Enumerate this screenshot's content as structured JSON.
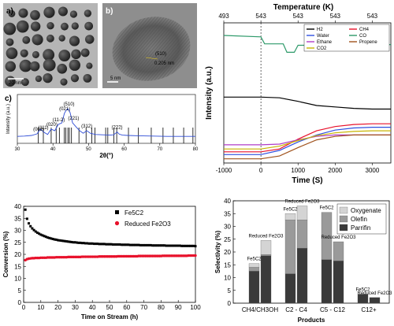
{
  "panels": {
    "a": {
      "letter": "a)",
      "scale_bar": "20 nm"
    },
    "b": {
      "letter": "b)",
      "scale_bar": "5 nm",
      "annotations": [
        "(510)",
        "0.205 nm"
      ]
    },
    "c": {
      "letter": "c)"
    }
  },
  "chart_data": [
    {
      "id": "xrd",
      "type": "line",
      "title": "",
      "xlabel": "2θ(°)",
      "ylabel": "Intensity (a.u.)",
      "xlim": [
        30,
        80
      ],
      "xticks": [
        30,
        40,
        50,
        60,
        70,
        80
      ],
      "x": [
        30,
        32,
        34,
        35.5,
        36.5,
        37.5,
        38.5,
        39.5,
        40.5,
        41.5,
        42.5,
        43.2,
        43.7,
        44.2,
        44.8,
        45.5,
        46.5,
        47.5,
        48.5,
        49.5,
        50.5,
        52,
        54,
        56,
        57,
        57.6,
        58,
        58.6,
        59.5,
        61,
        64,
        68,
        72,
        76,
        80
      ],
      "y": [
        0.12,
        0.13,
        0.15,
        0.2,
        0.35,
        0.25,
        0.18,
        0.35,
        0.3,
        0.5,
        0.55,
        0.85,
        0.95,
        1.0,
        0.88,
        0.55,
        0.42,
        0.3,
        0.22,
        0.3,
        0.22,
        0.18,
        0.17,
        0.16,
        0.17,
        0.22,
        0.26,
        0.19,
        0.16,
        0.15,
        0.14,
        0.13,
        0.12,
        0.12,
        0.12
      ],
      "peak_labels": [
        {
          "label": "(002)",
          "x": 36.0
        },
        {
          "label": "(111)",
          "x": 37.3
        },
        {
          "label": "(020)",
          "x": 39.7
        },
        {
          "label": "(11-2)",
          "x": 41.6
        },
        {
          "label": "(021)",
          "x": 43.3
        },
        {
          "label": "(510)",
          "x": 44.5
        },
        {
          "label": "(221)",
          "x": 45.8
        },
        {
          "label": "(312)",
          "x": 49.5
        },
        {
          "label": "(222)",
          "x": 58.0
        }
      ],
      "reference_lines": [
        35.9,
        37.3,
        39.5,
        40.9,
        41.8,
        43.2,
        43.6,
        44.2,
        44.6,
        45.2,
        47.3,
        49.3,
        50.9,
        51.8,
        54.8,
        55.4,
        57.1,
        57.9,
        61.2,
        64.0,
        67.6,
        70.9,
        73.8,
        76.7,
        79.3
      ]
    },
    {
      "id": "tpd",
      "type": "line",
      "xlabel": "Time (S)",
      "ylabel": "Intensity (a.u.)",
      "top_axis_label": "Temperature (K)",
      "top_ticks": [
        {
          "label": "493",
          "x": -1000
        },
        {
          "label": "543",
          "x": 0
        },
        {
          "label": "543",
          "x": 1000
        },
        {
          "label": "543",
          "x": 2000
        },
        {
          "label": "543",
          "x": 3000
        }
      ],
      "xlim": [
        -1000,
        3500
      ],
      "xticks": [
        -1000,
        0,
        1000,
        2000,
        3000
      ],
      "ylim": [
        0,
        1
      ],
      "dashed_line_x": 0,
      "legend_position": "top-right",
      "series": [
        {
          "name": "H2",
          "color": "#000000",
          "x": [
            -1000,
            0,
            500,
            1000,
            1500,
            2000,
            2500,
            3000,
            3500
          ],
          "y": [
            0.47,
            0.47,
            0.465,
            0.44,
            0.41,
            0.4,
            0.39,
            0.385,
            0.385
          ]
        },
        {
          "name": "CH4",
          "color": "#e8112b",
          "x": [
            -1000,
            0,
            500,
            1000,
            1500,
            2000,
            2500,
            3000,
            3500
          ],
          "y": [
            0.08,
            0.08,
            0.1,
            0.17,
            0.23,
            0.26,
            0.275,
            0.28,
            0.28
          ]
        },
        {
          "name": "Water",
          "color": "#3050e0",
          "x": [
            -1000,
            0,
            500,
            1000,
            1500,
            2000,
            2500,
            3000,
            3500
          ],
          "y": [
            0.06,
            0.06,
            0.09,
            0.15,
            0.2,
            0.235,
            0.25,
            0.255,
            0.255
          ]
        },
        {
          "name": "CO",
          "color": "#2e9a6a",
          "x": [
            -1000,
            0,
            100,
            600,
            700,
            900,
            1000,
            3500
          ],
          "y": [
            0.91,
            0.9,
            0.85,
            0.85,
            0.79,
            0.79,
            0.84,
            0.845
          ]
        },
        {
          "name": "Ethane",
          "color": "#b03cc8",
          "x": [
            -1000,
            0,
            500,
            1000,
            1500,
            2000,
            2500,
            3000,
            3500
          ],
          "y": [
            0.13,
            0.13,
            0.135,
            0.165,
            0.19,
            0.2,
            0.2,
            0.2,
            0.2
          ]
        },
        {
          "name": "Propene",
          "color": "#a0521d",
          "x": [
            -1000,
            0,
            500,
            1000,
            1500,
            2000,
            2500,
            3000,
            3500
          ],
          "y": [
            0.03,
            0.03,
            0.05,
            0.11,
            0.165,
            0.19,
            0.2,
            0.2,
            0.2
          ]
        },
        {
          "name": "CO2",
          "color": "#c8b400",
          "x": [
            -1000,
            0,
            500,
            1000,
            1500,
            2000,
            2500,
            3000,
            3500
          ],
          "y": [
            0.1,
            0.1,
            0.12,
            0.16,
            0.195,
            0.215,
            0.225,
            0.23,
            0.23
          ]
        }
      ]
    },
    {
      "id": "conversion",
      "type": "scatter",
      "xlabel": "Time on Stream (h)",
      "ylabel": "Conversion (%)",
      "xlim": [
        0,
        100
      ],
      "ylim": [
        0,
        40
      ],
      "xticks": [
        0,
        10,
        20,
        30,
        40,
        50,
        60,
        70,
        80,
        90,
        100
      ],
      "yticks": [
        0,
        5,
        10,
        15,
        20,
        25,
        30,
        35,
        40
      ],
      "legend_position": "top-right",
      "series": [
        {
          "name": "Fe5C2",
          "color": "#000000",
          "marker": "square",
          "x": [
            1,
            2,
            3,
            4,
            5,
            6,
            7,
            8,
            9,
            10,
            11,
            12,
            13,
            14,
            15,
            16,
            17,
            18,
            19,
            20,
            21,
            22,
            23,
            24,
            25,
            26,
            27,
            28,
            29,
            30,
            31,
            32,
            33,
            34,
            35,
            36,
            37,
            38,
            39,
            40,
            41,
            42,
            43,
            44,
            45,
            46,
            47,
            48,
            49,
            50,
            51,
            52,
            53,
            54,
            55,
            56,
            57,
            58,
            59,
            60,
            61,
            62,
            63,
            64,
            65,
            66,
            67,
            68,
            69,
            70,
            71,
            72,
            73,
            74,
            75,
            76,
            77,
            78,
            79,
            80,
            81,
            82,
            83,
            84,
            85,
            86,
            87,
            88,
            89,
            90,
            91,
            92,
            93,
            94,
            95,
            96,
            97,
            98,
            99,
            100
          ],
          "y": [
            38.6,
            34.8,
            32.9,
            31.7,
            30.8,
            30.1,
            29.5,
            29.0,
            28.6,
            28.2,
            27.9,
            27.6,
            27.3,
            27.0,
            26.8,
            26.6,
            26.4,
            26.2,
            26.1,
            25.9,
            25.8,
            25.7,
            25.6,
            25.5,
            25.4,
            25.3,
            25.2,
            25.1,
            25.0,
            25.0,
            24.9,
            24.8,
            24.8,
            24.7,
            24.7,
            24.6,
            24.6,
            24.5,
            24.5,
            24.5,
            24.4,
            24.4,
            24.4,
            24.3,
            24.3,
            24.3,
            24.3,
            24.2,
            24.2,
            24.2,
            24.2,
            24.1,
            24.1,
            24.1,
            24.1,
            24.1,
            24.0,
            24.0,
            24.0,
            24.0,
            24.0,
            23.9,
            23.9,
            23.9,
            23.9,
            23.9,
            23.9,
            23.8,
            23.8,
            23.8,
            23.8,
            23.8,
            23.8,
            23.8,
            23.7,
            23.7,
            23.7,
            23.7,
            23.7,
            23.7,
            23.7,
            23.7,
            23.6,
            23.6,
            23.6,
            23.6,
            23.6,
            23.6,
            23.6,
            23.6,
            23.6,
            23.5,
            23.5,
            23.5,
            23.5,
            23.5,
            23.5,
            23.5,
            23.5,
            23.4
          ]
        },
        {
          "name": "Reduced Fe2O3",
          "color": "#e8112b",
          "marker": "circle",
          "x": [
            1,
            2,
            3,
            4,
            5,
            6,
            7,
            8,
            9,
            10,
            11,
            12,
            13,
            14,
            15,
            16,
            17,
            18,
            19,
            20,
            21,
            22,
            23,
            24,
            25,
            26,
            27,
            28,
            29,
            30,
            31,
            32,
            33,
            34,
            35,
            36,
            37,
            38,
            39,
            40,
            41,
            42,
            43,
            44,
            45,
            46,
            47,
            48,
            49,
            50,
            51,
            52,
            53,
            54,
            55,
            56,
            57,
            58,
            59,
            60,
            61,
            62,
            63,
            64,
            65,
            66,
            67,
            68,
            69,
            70,
            71,
            72,
            73,
            74,
            75,
            76,
            77,
            78,
            79,
            80,
            81,
            82,
            83,
            84,
            85,
            86,
            87,
            88,
            89,
            90,
            91,
            92,
            93,
            94,
            95,
            96,
            97,
            98,
            99,
            100
          ],
          "y": [
            17.6,
            18.0,
            18.2,
            18.3,
            18.4,
            18.4,
            18.5,
            18.5,
            18.5,
            18.6,
            18.6,
            18.6,
            18.6,
            18.7,
            18.7,
            18.7,
            18.7,
            18.7,
            18.8,
            18.8,
            18.8,
            18.8,
            18.8,
            18.8,
            18.8,
            18.9,
            18.9,
            18.9,
            18.9,
            18.9,
            18.9,
            18.9,
            18.9,
            19.0,
            19.0,
            19.0,
            19.0,
            19.0,
            19.0,
            19.0,
            19.0,
            19.0,
            19.0,
            19.1,
            19.1,
            19.1,
            19.1,
            19.1,
            19.1,
            19.1,
            19.1,
            19.1,
            19.1,
            19.1,
            19.2,
            19.2,
            19.2,
            19.2,
            19.2,
            19.2,
            19.2,
            19.2,
            19.2,
            19.2,
            19.2,
            19.2,
            19.3,
            19.3,
            19.3,
            19.3,
            19.3,
            19.3,
            19.3,
            19.3,
            19.3,
            19.3,
            19.3,
            19.3,
            19.3,
            19.3,
            19.4,
            19.4,
            19.4,
            19.4,
            19.4,
            19.4,
            19.4,
            19.4,
            19.4,
            19.4,
            19.4,
            19.4,
            19.4,
            19.4,
            19.4,
            19.5,
            19.5,
            19.5,
            19.5,
            19.5
          ]
        }
      ]
    },
    {
      "id": "selectivity",
      "type": "bar",
      "stacked": true,
      "xlabel": "Products",
      "ylabel": "Selectivity (%)",
      "ylim": [
        0,
        40
      ],
      "yticks": [
        0,
        5,
        10,
        15,
        20,
        25,
        30,
        35,
        40
      ],
      "legend_position": "top-right",
      "categories": [
        "CH4/CH3OH",
        "C2 - C4",
        "C5 - C12",
        "C12+"
      ],
      "bar_labels": [
        "Fe5C2",
        "Reduced Fe2O3"
      ],
      "stack_order": [
        "Parrifin",
        "Olefin",
        "Oxygenate"
      ],
      "series": [
        {
          "name": "Oxygenate",
          "color": "#d4d4d4",
          "values": [
            [
              1.5,
              5.5
            ],
            [
              2.5,
              5.5
            ],
            [
              0,
              0
            ],
            [
              0,
              0
            ]
          ]
        },
        {
          "name": "Olefin",
          "color": "#9a9a9a",
          "values": [
            [
              1.5,
              0.5
            ],
            [
              21.0,
              11.0
            ],
            [
              18.5,
              7.5
            ],
            [
              0,
              0
            ]
          ]
        },
        {
          "name": "Parrifin",
          "color": "#3a3a3a",
          "values": [
            [
              12.5,
              18.5
            ],
            [
              11.5,
              21.5
            ],
            [
              17.0,
              16.5
            ],
            [
              3.5,
              2.2
            ]
          ]
        }
      ]
    }
  ]
}
